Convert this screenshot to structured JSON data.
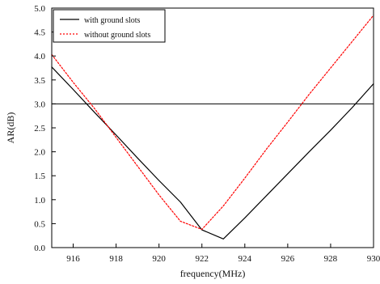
{
  "chart_data": {
    "type": "line",
    "title": "",
    "xlabel": "frequency(MHz)",
    "ylabel": "AR(dB)",
    "xlim": [
      915,
      930
    ],
    "ylim": [
      0.0,
      5.0
    ],
    "x_ticks": [
      916,
      918,
      920,
      922,
      924,
      926,
      928,
      930
    ],
    "y_ticks": [
      0.0,
      0.5,
      1.0,
      1.5,
      2.0,
      2.5,
      3.0,
      3.5,
      4.0,
      4.5,
      5.0
    ],
    "x_tick_labels": [
      "916",
      "918",
      "920",
      "922",
      "924",
      "926",
      "928",
      "930"
    ],
    "y_tick_labels": [
      "0.0",
      "0.5",
      "1.0",
      "1.5",
      "2.0",
      "2.5",
      "3.0",
      "3.5",
      "4.0",
      "4.5",
      "5.0"
    ],
    "reference_line": {
      "y": 3.0
    },
    "legend": {
      "position": "top-left"
    },
    "series": [
      {
        "name": "with ground slots",
        "color": "#000000",
        "style": "solid",
        "x": [
          915,
          916,
          917,
          918,
          919,
          920,
          921,
          922,
          923,
          924,
          925,
          926,
          927,
          928,
          929,
          930
        ],
        "y": [
          3.77,
          3.3,
          2.82,
          2.35,
          1.87,
          1.4,
          0.95,
          0.37,
          0.18,
          0.62,
          1.08,
          1.54,
          2.0,
          2.45,
          2.92,
          3.42
        ]
      },
      {
        "name": "without ground slots",
        "color": "#ff0000",
        "style": "dotted",
        "x": [
          915,
          916,
          917,
          918,
          919,
          920,
          921,
          922,
          923,
          924,
          925,
          926,
          927,
          928,
          929,
          930
        ],
        "y": [
          4.03,
          3.45,
          2.9,
          2.3,
          1.7,
          1.1,
          0.55,
          0.38,
          0.87,
          1.45,
          2.05,
          2.62,
          3.2,
          3.75,
          4.3,
          4.85
        ]
      }
    ]
  }
}
